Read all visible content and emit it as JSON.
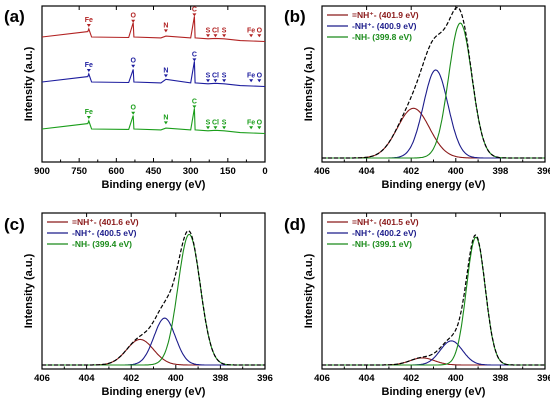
{
  "chart_data": [
    {
      "panel": "(a)",
      "type": "line",
      "xlabel": "Binding energy (eV)",
      "ylabel": "Intensity (a.u.)",
      "xlim": [
        900,
        0
      ],
      "xticks": [
        "900",
        "750",
        "600",
        "450",
        "300",
        "150",
        "0"
      ],
      "xtick_values": [
        900,
        750,
        600,
        450,
        300,
        150,
        0
      ],
      "grid": false,
      "series": [
        {
          "color": "#b22222",
          "values": [
            [
              900,
              1.0
            ],
            [
              715,
              1.6
            ],
            [
              711,
              1.9
            ],
            [
              700,
              1.0
            ],
            [
              550,
              0.95
            ],
            [
              532,
              2.6
            ],
            [
              529,
              1.0
            ],
            [
              420,
              0.9
            ],
            [
              400,
              1.1
            ],
            [
              300,
              0.9
            ],
            [
              285,
              3.3
            ],
            [
              282,
              0.9
            ],
            [
              230,
              0.8
            ],
            [
              200,
              0.85
            ],
            [
              165,
              0.8
            ],
            [
              100,
              0.6
            ],
            [
              0,
              0.5
            ]
          ]
        },
        {
          "color": "#1c1c9e",
          "values": [
            [
              900,
              1.0
            ],
            [
              715,
              1.6
            ],
            [
              711,
              1.9
            ],
            [
              700,
              1.0
            ],
            [
              550,
              0.95
            ],
            [
              532,
              2.4
            ],
            [
              529,
              1.0
            ],
            [
              420,
              0.9
            ],
            [
              400,
              1.3
            ],
            [
              300,
              0.9
            ],
            [
              285,
              3.3
            ],
            [
              282,
              0.9
            ],
            [
              230,
              0.8
            ],
            [
              200,
              0.85
            ],
            [
              165,
              0.8
            ],
            [
              100,
              0.6
            ],
            [
              0,
              0.5
            ]
          ]
        },
        {
          "color": "#1a9e1a",
          "values": [
            [
              900,
              1.0
            ],
            [
              715,
              1.6
            ],
            [
              711,
              1.9
            ],
            [
              700,
              1.0
            ],
            [
              550,
              0.95
            ],
            [
              532,
              2.5
            ],
            [
              529,
              1.0
            ],
            [
              420,
              0.9
            ],
            [
              400,
              1.1
            ],
            [
              300,
              0.9
            ],
            [
              285,
              3.3
            ],
            [
              282,
              0.9
            ],
            [
              230,
              0.8
            ],
            [
              200,
              0.85
            ],
            [
              165,
              0.8
            ],
            [
              100,
              0.6
            ],
            [
              0,
              0.5
            ]
          ]
        }
      ],
      "peak_labels": [
        {
          "text": "Fe",
          "x": 711
        },
        {
          "text": "O",
          "x": 532
        },
        {
          "text": "N",
          "x": 400
        },
        {
          "text": "C",
          "x": 285
        },
        {
          "text": "S",
          "x": 230
        },
        {
          "text": "Cl",
          "x": 200
        },
        {
          "text": "S",
          "x": 165
        },
        {
          "text": "Fe",
          "x": 56
        },
        {
          "text": "O",
          "x": 23
        }
      ]
    },
    {
      "panel": "(b)",
      "type": "line",
      "xlabel": "Binding energy (eV)",
      "ylabel": "Intensity (a.u.)",
      "xlim": [
        406,
        396
      ],
      "xticks": [
        "406",
        "404",
        "402",
        "400",
        "398",
        "396"
      ],
      "xtick_values": [
        406,
        404,
        402,
        400,
        398,
        396
      ],
      "grid": false,
      "legend": {
        "placement": "top-left",
        "entries": [
          {
            "label": "=NH⁺- (401.9 eV)",
            "color": "#8b1a1a"
          },
          {
            "label": "-NH⁺‐ (400.9 eV)",
            "color": "#1c1c8b"
          },
          {
            "label": "-NH- (399.8 eV)",
            "color": "#1a8b1a"
          }
        ]
      },
      "series": [
        {
          "label": "=NH⁺- (401.9 eV)",
          "color": "#8b1a1a",
          "center": 401.9,
          "height": 0.35,
          "sigma": 0.72
        },
        {
          "label": "-NH⁺‐ (400.9 eV)",
          "color": "#1c1c8b",
          "center": 400.9,
          "height": 0.62,
          "sigma": 0.55
        },
        {
          "label": "-NH- (399.8 eV)",
          "color": "#1a8b1a",
          "center": 399.8,
          "height": 0.95,
          "sigma": 0.52
        },
        {
          "label": "envelope",
          "color": "#000000",
          "dashed": true
        }
      ]
    },
    {
      "panel": "(c)",
      "type": "line",
      "xlabel": "Binding energy (eV)",
      "ylabel": "Intensity (a.u.)",
      "xlim": [
        406,
        396
      ],
      "xticks": [
        "406",
        "404",
        "402",
        "400",
        "398",
        "396"
      ],
      "xtick_values": [
        406,
        404,
        402,
        400,
        398,
        396
      ],
      "grid": false,
      "legend": {
        "placement": "top-left",
        "entries": [
          {
            "label": "=NH⁺- (401.6 eV)",
            "color": "#8b1a1a"
          },
          {
            "label": "-NH⁺‐ (400.5 eV)",
            "color": "#1c1c8b"
          },
          {
            "label": "-NH- (399.4 eV)",
            "color": "#1a8b1a"
          }
        ]
      },
      "series": [
        {
          "label": "=NH⁺- (401.6 eV)",
          "color": "#8b1a1a",
          "center": 401.6,
          "height": 0.18,
          "sigma": 0.6
        },
        {
          "label": "-NH⁺‐ (400.5 eV)",
          "color": "#1c1c8b",
          "center": 400.5,
          "height": 0.33,
          "sigma": 0.48
        },
        {
          "label": "-NH- (399.4 eV)",
          "color": "#1a8b1a",
          "center": 399.4,
          "height": 0.92,
          "sigma": 0.5
        },
        {
          "label": "envelope",
          "color": "#000000",
          "dashed": true
        }
      ]
    },
    {
      "panel": "(d)",
      "type": "line",
      "xlabel": "Binding energy (eV)",
      "ylabel": "Intensity (a.u.)",
      "xlim": [
        406,
        396
      ],
      "xticks": [
        "406",
        "404",
        "402",
        "400",
        "398",
        "396"
      ],
      "xtick_values": [
        406,
        404,
        402,
        400,
        398,
        396
      ],
      "grid": false,
      "legend": {
        "placement": "top-left",
        "entries": [
          {
            "label": "=NH⁺- (401.5 eV)",
            "color": "#8b1a1a"
          },
          {
            "label": "-NH⁺‐ (400.2 eV)",
            "color": "#1c1c8b"
          },
          {
            "label": "-NH- (399.1 eV)",
            "color": "#1a8b1a"
          }
        ]
      },
      "series": [
        {
          "label": "=NH⁺- (401.5 eV)",
          "color": "#8b1a1a",
          "center": 401.5,
          "height": 0.05,
          "sigma": 0.55
        },
        {
          "label": "-NH⁺‐ (400.2 eV)",
          "color": "#1c1c8b",
          "center": 400.2,
          "height": 0.17,
          "sigma": 0.5
        },
        {
          "label": "-NH- (399.1 eV)",
          "color": "#1a8b1a",
          "center": 399.1,
          "height": 0.9,
          "sigma": 0.42
        },
        {
          "label": "envelope",
          "color": "#000000",
          "dashed": true
        }
      ]
    }
  ]
}
